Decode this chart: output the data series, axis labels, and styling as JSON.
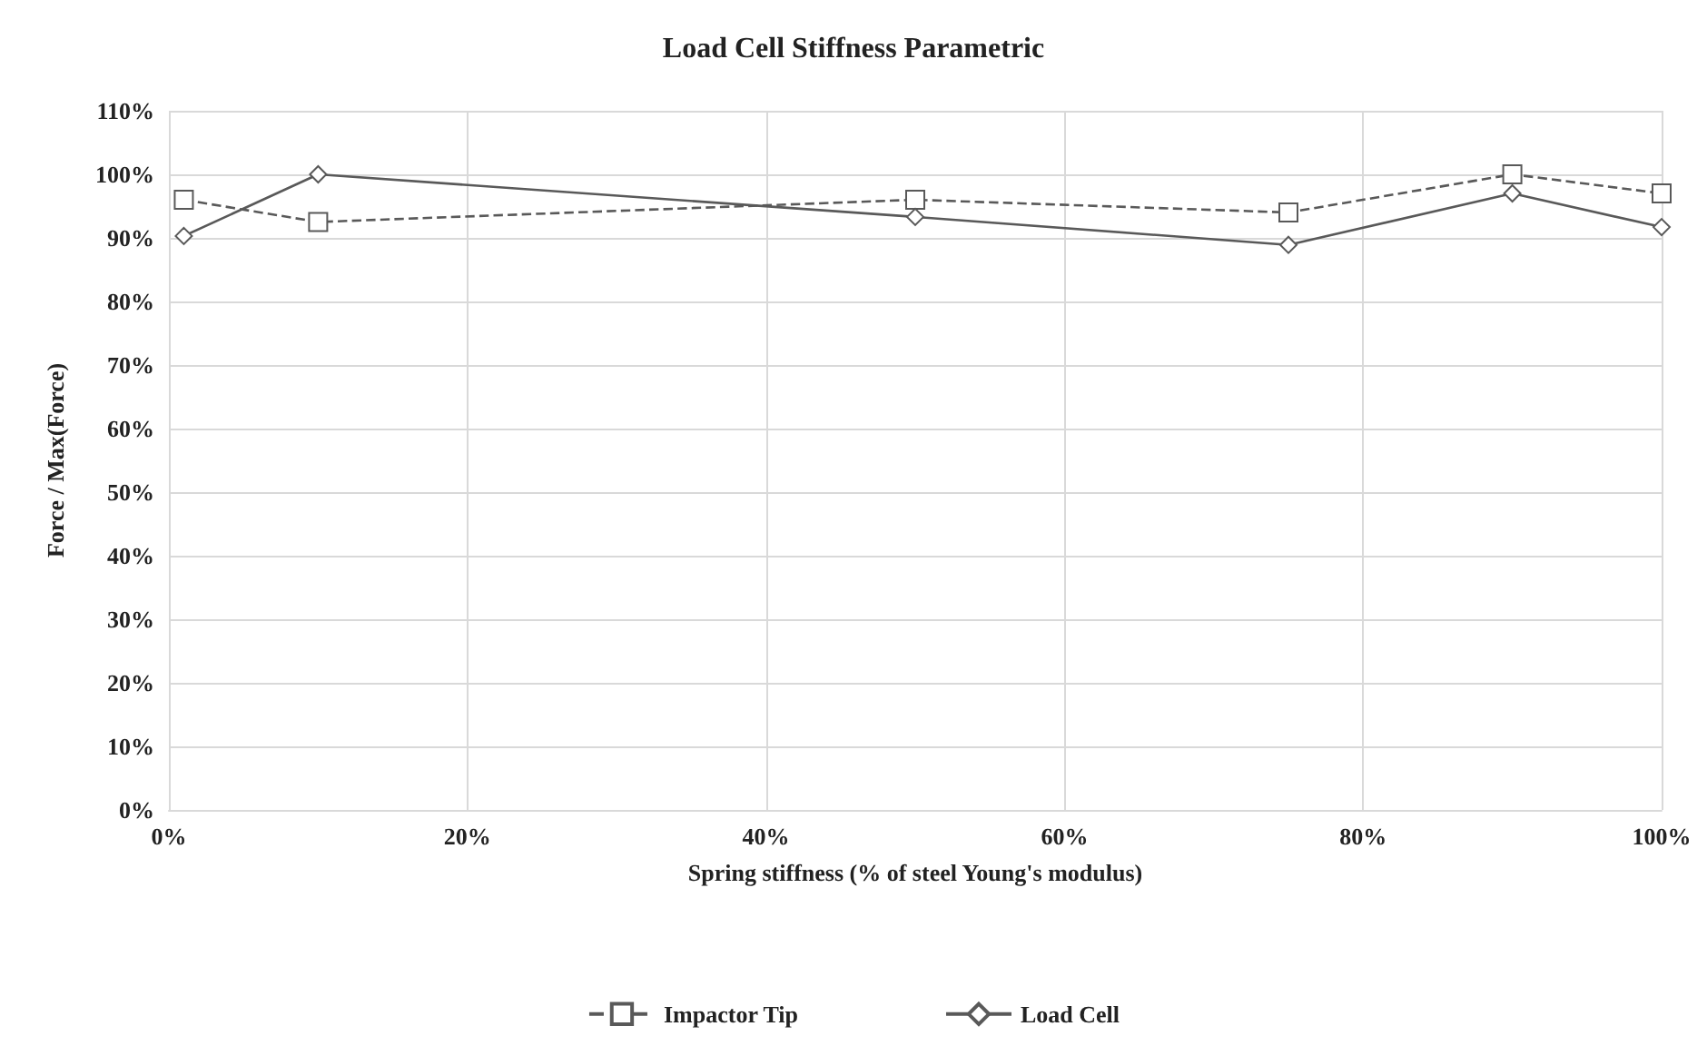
{
  "chart_data": {
    "type": "line",
    "title": "Load Cell Stiffness Parametric",
    "xlabel": "Spring stiffness (% of steel Young's modulus)",
    "ylabel": "Force / Max(Force)",
    "x": [
      1,
      10,
      50,
      75,
      90,
      100
    ],
    "series": [
      {
        "name": "Impactor Tip",
        "color": "#595959",
        "values": [
          96,
          92.5,
          96,
          94,
          100,
          97
        ],
        "marker": "square",
        "line_style": "dashed"
      },
      {
        "name": "Load Cell",
        "color": "#595959",
        "values": [
          90.3,
          100,
          93.3,
          88.9,
          97,
          91.7
        ],
        "marker": "diamond",
        "line_style": "solid"
      }
    ],
    "xlim": [
      0,
      100
    ],
    "xticks": [
      {
        "value": 0,
        "label": "0%"
      },
      {
        "value": 20,
        "label": "20%"
      },
      {
        "value": 40,
        "label": "40%"
      },
      {
        "value": 60,
        "label": "60%"
      },
      {
        "value": 80,
        "label": "80%"
      },
      {
        "value": 100,
        "label": "100%"
      }
    ],
    "ylim": [
      0,
      110
    ],
    "yticks": [
      {
        "value": 0,
        "label": "0%"
      },
      {
        "value": 10,
        "label": "10%"
      },
      {
        "value": 20,
        "label": "20%"
      },
      {
        "value": 30,
        "label": "30%"
      },
      {
        "value": 40,
        "label": "40%"
      },
      {
        "value": 50,
        "label": "50%"
      },
      {
        "value": 60,
        "label": "60%"
      },
      {
        "value": 70,
        "label": "70%"
      },
      {
        "value": 80,
        "label": "80%"
      },
      {
        "value": 90,
        "label": "90%"
      },
      {
        "value": 100,
        "label": "100%"
      },
      {
        "value": 110,
        "label": "110%"
      }
    ],
    "grid": true,
    "legend": "bottom"
  }
}
